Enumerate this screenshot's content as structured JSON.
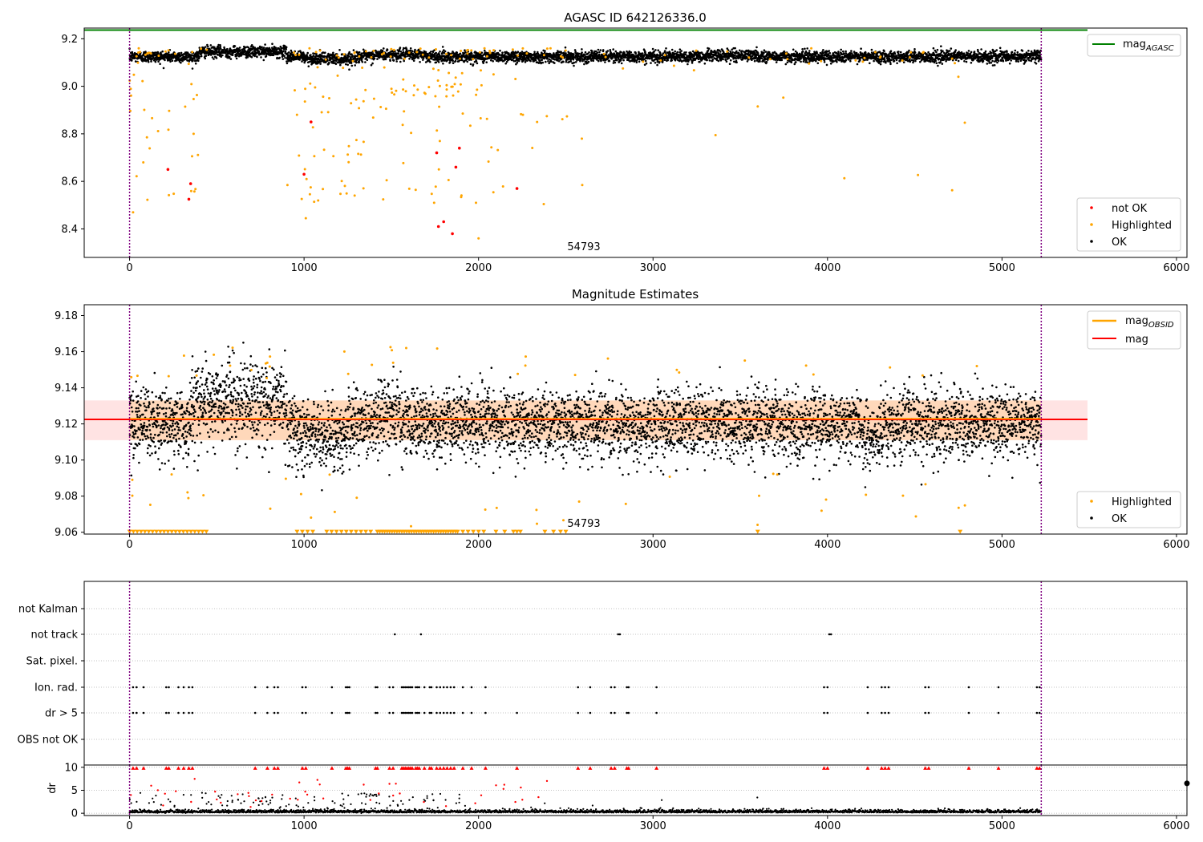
{
  "chart_data": [
    {
      "type": "scatter",
      "title": "AGASC ID 642126336.0",
      "xlim": [
        -260,
        6060
      ],
      "ylim": [
        8.28,
        9.245
      ],
      "xticks": [
        "0",
        "1000",
        "2000",
        "3000",
        "4000",
        "5000",
        "6000"
      ],
      "yticks": [
        "8.4",
        "8.6",
        "8.8",
        "9.0",
        "9.2"
      ],
      "annotation": {
        "text": "54793",
        "x": 2500,
        "y": 8.3
      },
      "vlines": [
        0,
        5225
      ],
      "reference_line": {
        "name": "mag_AGASC",
        "y": 9.24,
        "color": "#008000",
        "x_range": [
          -260,
          5490
        ]
      },
      "legend_top": [
        {
          "name": "mag",
          "sub": "AGASC",
          "color": "#008000",
          "kind": "line"
        }
      ],
      "legend_bottom": [
        {
          "name": "not OK",
          "color": "#ff0000",
          "kind": "dot"
        },
        {
          "name": "Highlighted",
          "color": "#ffa500",
          "kind": "dot"
        },
        {
          "name": "OK",
          "color": "#000000",
          "kind": "dot"
        }
      ],
      "series": [
        {
          "name": "OK",
          "color": "#000000",
          "n_points": 5200,
          "x_range": [
            0,
            5225
          ],
          "y_center": 9.125,
          "y_spread": 0.012
        },
        {
          "name": "Highlighted",
          "color": "#ffa500",
          "x_range": [
            0,
            4800
          ],
          "y_range": [
            8.36,
            9.16
          ]
        },
        {
          "name": "not OK",
          "color": "#ff0000",
          "x": [
            220,
            340,
            350,
            1000,
            1040,
            1770,
            1800,
            1850,
            1760,
            1870,
            1890,
            2220
          ],
          "y": [
            8.65,
            8.525,
            8.59,
            8.63,
            8.85,
            8.41,
            8.43,
            8.38,
            8.72,
            8.66,
            8.74,
            8.57
          ]
        }
      ]
    },
    {
      "type": "scatter",
      "title": "Magnitude Estimates",
      "xlim": [
        -260,
        6060
      ],
      "ylim": [
        9.059,
        9.186
      ],
      "xticks": [
        "0",
        "1000",
        "2000",
        "3000",
        "4000",
        "5000",
        "6000"
      ],
      "yticks": [
        "9.06",
        "9.08",
        "9.10",
        "9.12",
        "9.14",
        "9.16",
        "9.18"
      ],
      "annotation": {
        "text": "54793",
        "x": 2500,
        "y": 9.0615
      },
      "vlines": [
        0,
        5225
      ],
      "mag_line": {
        "name": "mag",
        "y": 9.1225,
        "color": "#ff0000",
        "band": [
          9.111,
          9.133
        ],
        "x_range": [
          -260,
          5490
        ]
      },
      "mag_obsid": {
        "name": "mag_OBSID",
        "color": "#ffa500"
      },
      "legend_top": [
        {
          "name": "mag",
          "sub": "OBSID",
          "color": "#ffa500",
          "kind": "line"
        },
        {
          "name": "mag",
          "sub": "",
          "color": "#ff0000",
          "kind": "line"
        }
      ],
      "legend_bottom": [
        {
          "name": "Highlighted",
          "color": "#ffa500",
          "kind": "dot"
        },
        {
          "name": "OK",
          "color": "#000000",
          "kind": "dot"
        }
      ],
      "series": [
        {
          "name": "OK",
          "color": "#000000",
          "x_range": [
            0,
            5225
          ],
          "y_center": 9.12,
          "y_spread": 0.01
        },
        {
          "name": "Highlighted",
          "color": "#ffa500",
          "x_range": [
            0,
            4900
          ],
          "y_range": [
            9.06,
            9.163
          ]
        }
      ]
    },
    {
      "type": "scatter",
      "title": "",
      "xlim": [
        -260,
        6060
      ],
      "categories": [
        "not Kalman",
        "not track",
        "Sat. pixel.",
        "Ion. rad.",
        "dr > 5",
        "OBS not OK"
      ],
      "vlines": [
        0,
        5225
      ],
      "flags": {
        "not track": [
          1520,
          1670,
          2800,
          2810,
          4010,
          4020
        ],
        "Ion. rad.": [
          20,
          40,
          80,
          210,
          225,
          280,
          310,
          340,
          360,
          720,
          790,
          830,
          850,
          990,
          1010,
          1160,
          1240,
          1250,
          1260,
          1410,
          1420,
          1490,
          1510,
          1560,
          1570,
          1580,
          1590,
          1600,
          1610,
          1620,
          1640,
          1650,
          1660,
          1690,
          1720,
          1730,
          1760,
          1780,
          1800,
          1820,
          1840,
          1860,
          1910,
          1960,
          2040,
          2570,
          2640,
          2760,
          2780,
          2850,
          2860,
          3020,
          3980,
          4000,
          4230,
          4310,
          4330,
          4350,
          4560,
          4580,
          4810,
          4980,
          5200,
          5215
        ],
        "dr > 5": [
          20,
          40,
          80,
          210,
          225,
          280,
          310,
          340,
          360,
          720,
          790,
          830,
          850,
          990,
          1010,
          1160,
          1240,
          1250,
          1260,
          1410,
          1420,
          1490,
          1510,
          1560,
          1570,
          1580,
          1590,
          1600,
          1610,
          1620,
          1640,
          1650,
          1660,
          1690,
          1720,
          1730,
          1760,
          1780,
          1800,
          1820,
          1840,
          1860,
          1910,
          1960,
          2040,
          2220,
          2570,
          2640,
          2760,
          2780,
          2850,
          2860,
          3020,
          3980,
          4000,
          4230,
          4310,
          4330,
          4350,
          4560,
          4580,
          4810,
          4980,
          5200,
          5215
        ]
      }
    },
    {
      "type": "scatter",
      "title": "",
      "ylabel": "dr",
      "xlim": [
        -260,
        6060
      ],
      "ylim": [
        -0.5,
        10.5
      ],
      "xticks": [
        "0",
        "1000",
        "2000",
        "3000",
        "4000",
        "5000",
        "6000"
      ],
      "yticks": [
        "0",
        "5",
        "10"
      ],
      "vlines": [
        0,
        5225
      ],
      "series": [
        {
          "name": "OK",
          "color": "#000000",
          "x_range": [
            0,
            5225
          ],
          "y_center": 0.3
        },
        {
          "name": "Highlighted",
          "color": "#ffa500"
        },
        {
          "name": "not OK",
          "color": "#ff0000"
        }
      ],
      "clipped_marker_y": 10
    }
  ]
}
